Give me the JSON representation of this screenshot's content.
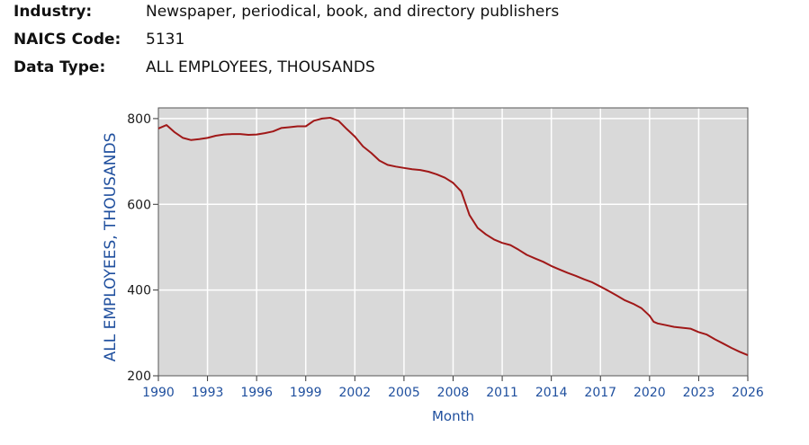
{
  "header": {
    "fields": [
      {
        "label": "Industry:",
        "value": "Newspaper, periodical, book, and directory publishers"
      },
      {
        "label": "NAICS Code:",
        "value": "5131"
      },
      {
        "label": "Data Type:",
        "value": "ALL EMPLOYEES, THOUSANDS"
      }
    ]
  },
  "chart_data": {
    "type": "line",
    "xlabel": "Month",
    "ylabel": "ALL EMPLOYEES, THOUSANDS",
    "xlim": [
      1990,
      2026
    ],
    "ylim": [
      200,
      825
    ],
    "xticks": [
      1990,
      1993,
      1996,
      1999,
      2002,
      2005,
      2008,
      2011,
      2014,
      2017,
      2020,
      2023,
      2026
    ],
    "yticks": [
      200,
      400,
      600,
      800
    ],
    "grid": true,
    "colors": {
      "line": "#a01818",
      "plot_bg": "#d9d9d9",
      "axis_text": "#1f4f9e",
      "grid": "#ffffff"
    },
    "series": [
      {
        "x": [
          1990.0,
          1990.5,
          1991.0,
          1991.5,
          1992.0,
          1992.5,
          1993.0,
          1993.5,
          1994.0,
          1994.5,
          1995.0,
          1995.5,
          1996.0,
          1996.5,
          1997.0,
          1997.5,
          1998.0,
          1998.5,
          1999.0,
          1999.5,
          2000.0,
          2000.5,
          2001.0,
          2001.5,
          2002.0,
          2002.5,
          2003.0,
          2003.5,
          2004.0,
          2004.5,
          2005.0,
          2005.5,
          2006.0,
          2006.5,
          2007.0,
          2007.5,
          2008.0,
          2008.5,
          2009.0,
          2009.5,
          2010.0,
          2010.5,
          2011.0,
          2011.5,
          2012.0,
          2012.5,
          2013.0,
          2013.5,
          2014.0,
          2014.5,
          2015.0,
          2015.5,
          2016.0,
          2016.5,
          2017.0,
          2017.5,
          2018.0,
          2018.5,
          2019.0,
          2019.5,
          2020.0,
          2020.25,
          2020.5,
          2021.0,
          2021.5,
          2022.0,
          2022.5,
          2023.0,
          2023.5,
          2024.0,
          2024.5,
          2025.0,
          2025.5,
          2026.0
        ],
        "y": [
          777,
          785,
          768,
          755,
          750,
          752,
          755,
          760,
          763,
          764,
          764,
          762,
          763,
          766,
          770,
          778,
          780,
          782,
          782,
          795,
          800,
          802,
          795,
          776,
          758,
          735,
          720,
          702,
          692,
          688,
          685,
          682,
          680,
          676,
          670,
          662,
          650,
          630,
          575,
          545,
          530,
          518,
          510,
          505,
          494,
          482,
          474,
          466,
          456,
          448,
          440,
          433,
          425,
          418,
          408,
          398,
          387,
          376,
          368,
          358,
          340,
          326,
          322,
          318,
          314,
          312,
          310,
          302,
          296,
          285,
          275,
          265,
          256,
          248
        ]
      }
    ]
  }
}
